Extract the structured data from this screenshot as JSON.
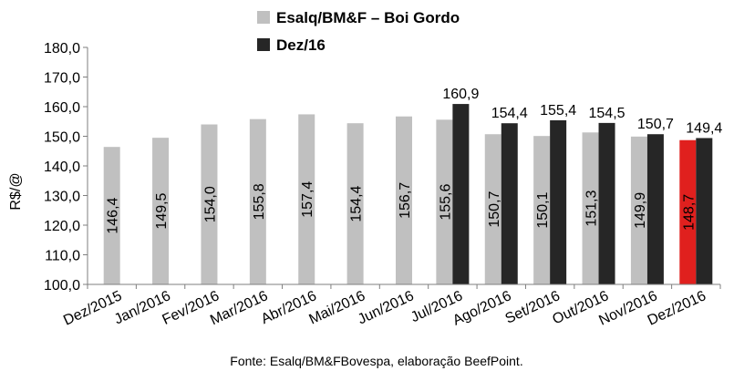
{
  "chart_data": {
    "type": "bar",
    "ylabel": "R$/@",
    "ylim": [
      100,
      180
    ],
    "ytick_step": 10,
    "ytick_labels": [
      "100,0",
      "110,0",
      "120,0",
      "130,0",
      "140,0",
      "150,0",
      "160,0",
      "170,0",
      "180,0"
    ],
    "categories": [
      "Dez/2015",
      "Jan/2016",
      "Fev/2016",
      "Mar/2016",
      "Abr/2016",
      "Mai/2016",
      "Jun/2016",
      "Jul/2016",
      "Ago/2016",
      "Set/2016",
      "Out/2016",
      "Nov/2016",
      "Dez/2016"
    ],
    "series": [
      {
        "name": "Esalq/BM&F – Boi Gordo",
        "color": "#c0c0c0",
        "values": [
          146.4,
          149.5,
          154.0,
          155.8,
          157.4,
          154.4,
          156.7,
          155.6,
          150.7,
          150.1,
          151.3,
          149.9,
          148.7
        ],
        "labels": [
          "146,4",
          "149,5",
          "154,0",
          "155,8",
          "157,4",
          "154,4",
          "156,7",
          "155,6",
          "150,7",
          "150,1",
          "151,3",
          "149,9",
          "148,7"
        ],
        "highlight": {
          "index": 12,
          "color": "#e0201e"
        }
      },
      {
        "name": "Dez/16",
        "color": "#262626",
        "values": [
          null,
          null,
          null,
          null,
          null,
          null,
          null,
          160.9,
          154.4,
          155.4,
          154.5,
          150.7,
          149.4
        ],
        "labels": [
          null,
          null,
          null,
          null,
          null,
          null,
          null,
          "160,9",
          "154,4",
          "155,4",
          "154,5",
          "150,7",
          "149,4"
        ]
      }
    ],
    "legend_position": "top-center",
    "grid": false
  },
  "source_note": "Fonte: Esalq/BM&FBovespa, elaboração BeefPoint."
}
